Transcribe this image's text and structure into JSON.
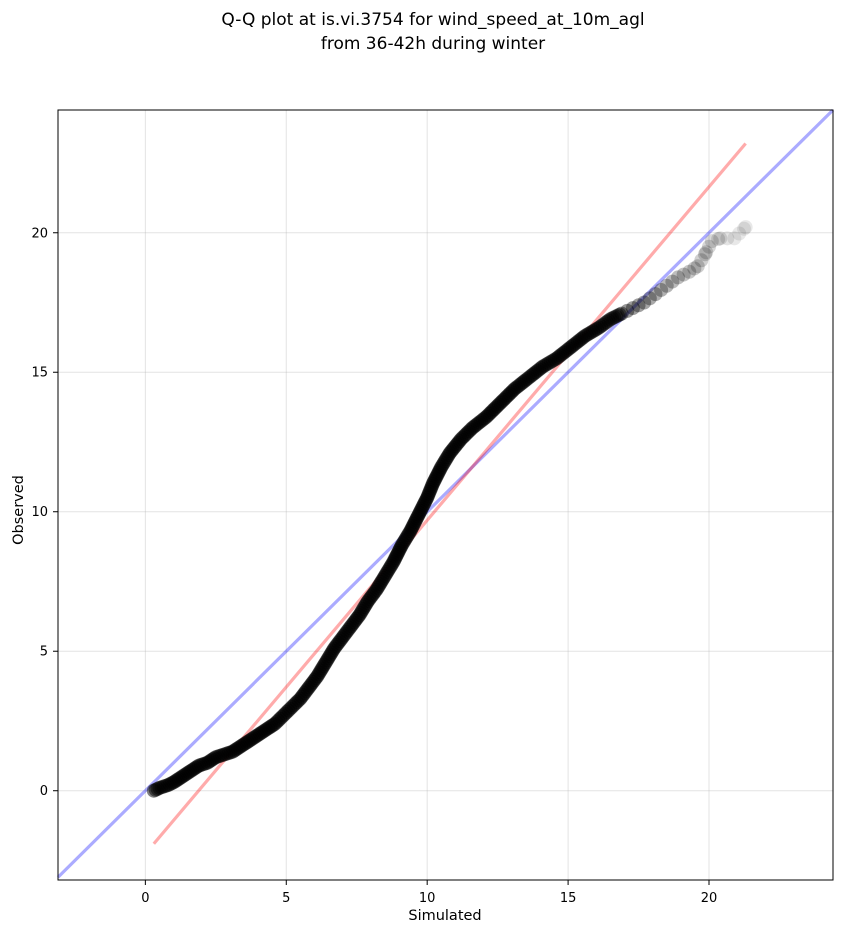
{
  "chart_data": {
    "type": "scatter",
    "title": "Q-Q plot at is.vi.3754 for wind_speed_at_10m_agl",
    "subtitle": "from 36-42h during winter",
    "xlabel": "Simulated",
    "ylabel": "Observed",
    "xlim": [
      -3.1,
      24.4
    ],
    "ylim": [
      -3.2,
      24.4
    ],
    "xticks": [
      0,
      5,
      10,
      15,
      20
    ],
    "yticks": [
      0,
      5,
      10,
      15,
      20
    ],
    "xtick_labels": [
      "0",
      "5",
      "10",
      "15",
      "20"
    ],
    "ytick_labels": [
      "0",
      "5",
      "10",
      "15",
      "20"
    ],
    "grid": true,
    "legend": "none",
    "marker_color": "#000000",
    "identity_line": {
      "x": [
        -3.1,
        24.4
      ],
      "y": [
        -3.1,
        24.4
      ],
      "color": "#0000ff"
    },
    "fit_line": {
      "x": [
        0.3,
        21.3
      ],
      "y": [
        -1.9,
        23.2
      ],
      "color": "#ff0000"
    },
    "points": [
      [
        0.3,
        0.0
      ],
      [
        0.5,
        0.1
      ],
      [
        0.8,
        0.2
      ],
      [
        1.0,
        0.3
      ],
      [
        1.3,
        0.5
      ],
      [
        1.6,
        0.7
      ],
      [
        1.9,
        0.9
      ],
      [
        2.2,
        1.0
      ],
      [
        2.5,
        1.2
      ],
      [
        2.8,
        1.3
      ],
      [
        3.1,
        1.4
      ],
      [
        3.4,
        1.6
      ],
      [
        3.7,
        1.8
      ],
      [
        4.0,
        2.0
      ],
      [
        4.3,
        2.2
      ],
      [
        4.6,
        2.4
      ],
      [
        4.9,
        2.7
      ],
      [
        5.2,
        3.0
      ],
      [
        5.5,
        3.3
      ],
      [
        5.8,
        3.7
      ],
      [
        6.1,
        4.1
      ],
      [
        6.4,
        4.6
      ],
      [
        6.7,
        5.1
      ],
      [
        7.0,
        5.5
      ],
      [
        7.3,
        5.9
      ],
      [
        7.6,
        6.3
      ],
      [
        7.9,
        6.8
      ],
      [
        8.2,
        7.2
      ],
      [
        8.5,
        7.7
      ],
      [
        8.8,
        8.2
      ],
      [
        9.1,
        8.8
      ],
      [
        9.4,
        9.3
      ],
      [
        9.6,
        9.7
      ],
      [
        9.8,
        10.1
      ],
      [
        10.0,
        10.5
      ],
      [
        10.2,
        11.0
      ],
      [
        10.5,
        11.6
      ],
      [
        10.8,
        12.1
      ],
      [
        11.2,
        12.6
      ],
      [
        11.6,
        13.0
      ],
      [
        12.1,
        13.4
      ],
      [
        12.6,
        13.9
      ],
      [
        13.1,
        14.4
      ],
      [
        13.6,
        14.8
      ],
      [
        14.1,
        15.2
      ],
      [
        14.6,
        15.5
      ],
      [
        15.1,
        15.9
      ],
      [
        15.6,
        16.3
      ],
      [
        16.1,
        16.6
      ],
      [
        16.5,
        16.9
      ],
      [
        16.9,
        17.1
      ],
      [
        17.3,
        17.3
      ],
      [
        17.7,
        17.5
      ],
      [
        18.1,
        17.8
      ],
      [
        18.5,
        18.1
      ],
      [
        18.9,
        18.4
      ],
      [
        19.3,
        18.6
      ],
      [
        19.6,
        18.8
      ],
      [
        19.9,
        19.3
      ],
      [
        20.1,
        19.7
      ],
      [
        20.4,
        19.8
      ],
      [
        20.9,
        19.8
      ],
      [
        21.3,
        20.2
      ]
    ]
  }
}
